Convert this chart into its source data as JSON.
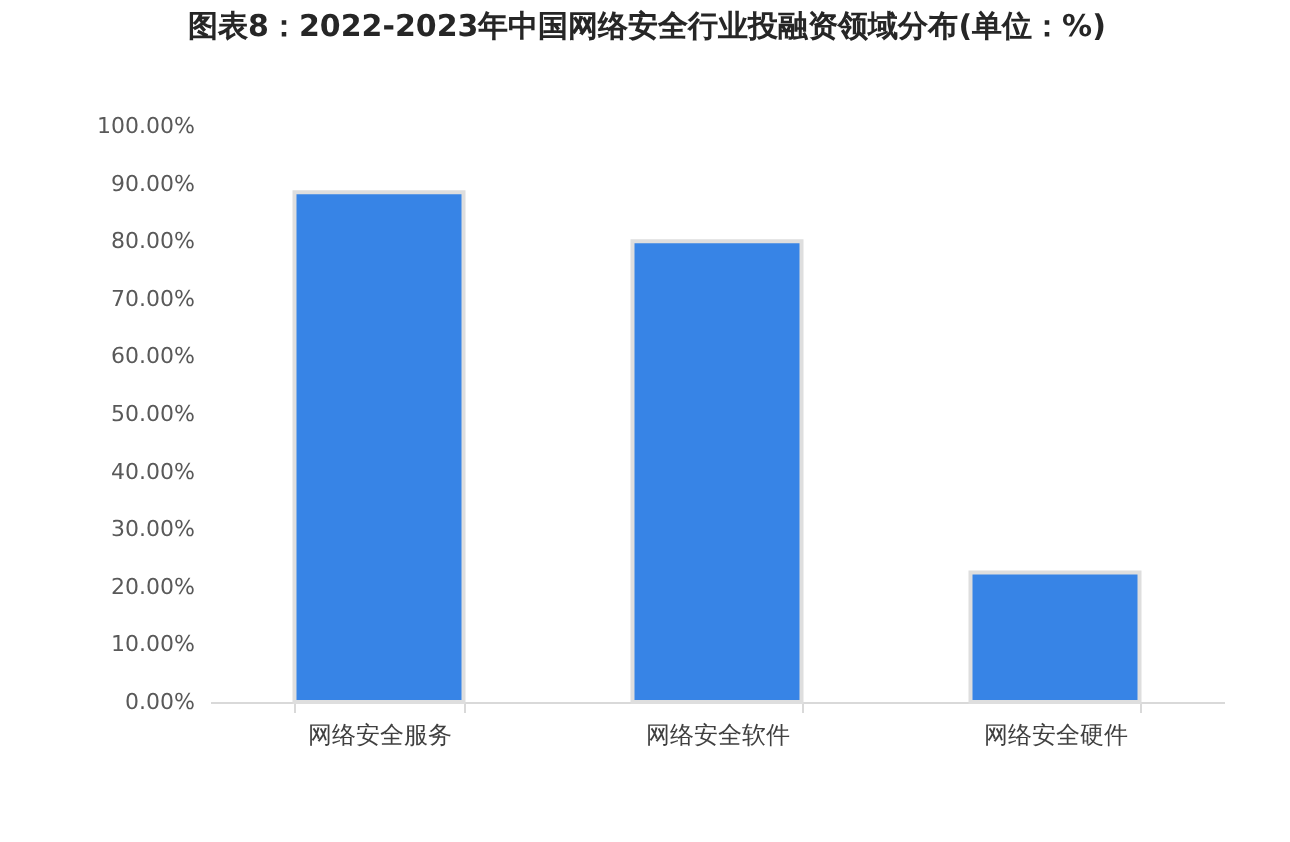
{
  "chart_data": {
    "type": "bar",
    "title": "图表8：2022-2023年中国网络安全行业投融资领域分布(单位：%)",
    "categories": [
      "网络安全服务",
      "网络安全软件",
      "网络安全硬件"
    ],
    "values": [
      88.5,
      80,
      22.5
    ],
    "color": "#3784e6",
    "ylim": [
      0,
      100
    ],
    "yticks": [
      {
        "value": 0,
        "label": "0.00%"
      },
      {
        "value": 10,
        "label": "10.00%"
      },
      {
        "value": 20,
        "label": "20.00%"
      },
      {
        "value": 30,
        "label": "30.00%"
      },
      {
        "value": 40,
        "label": "40.00%"
      },
      {
        "value": 50,
        "label": "50.00%"
      },
      {
        "value": 60,
        "label": "60.00%"
      },
      {
        "value": 70,
        "label": "70.00%"
      },
      {
        "value": 80,
        "label": "80.00%"
      },
      {
        "value": 90,
        "label": "90.00%"
      },
      {
        "value": 100,
        "label": "100.00%"
      }
    ],
    "grid": false
  }
}
